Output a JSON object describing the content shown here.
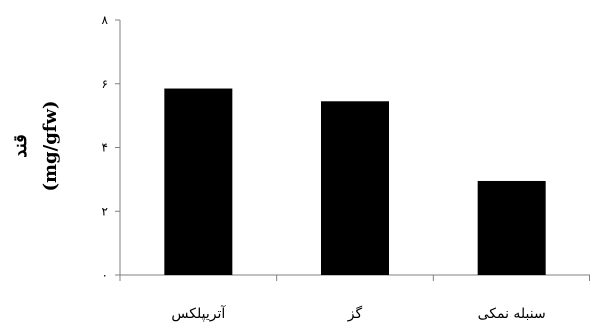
{
  "chart_data": {
    "type": "bar",
    "title": "",
    "xlabel": "",
    "ylabel_line1": "قند",
    "ylabel_line2": "(mg/gfw)",
    "categories": [
      "آتریپلکس",
      "گز",
      "سنبله نمکی"
    ],
    "values": [
      5.85,
      5.45,
      2.95
    ],
    "ylim": [
      0,
      8
    ],
    "yticks": [
      0,
      2,
      4,
      6,
      8
    ],
    "ytick_labels": [
      "۰",
      "۲",
      "۴",
      "۶",
      "۸"
    ],
    "grid": false,
    "legend": "none",
    "bar_color": "#000000",
    "axis_color": "#808080"
  }
}
